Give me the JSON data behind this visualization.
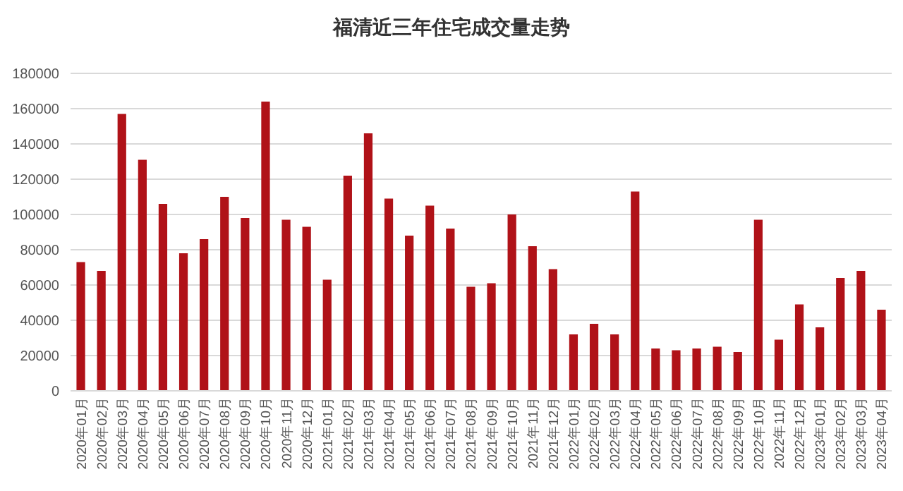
{
  "chart_data": {
    "type": "bar",
    "title": "福清近三年住宅成交量走势",
    "categories": [
      "2020年01月",
      "2020年02月",
      "2020年03月",
      "2020年04月",
      "2020年05月",
      "2020年06月",
      "2020年07月",
      "2020年08月",
      "2020年09月",
      "2020年10月",
      "2020年11月",
      "2020年12月",
      "2021年01月",
      "2021年02月",
      "2021年03月",
      "2021年04月",
      "2021年05月",
      "2021年06月",
      "2021年07月",
      "2021年08月",
      "2021年09月",
      "2021年10月",
      "2021年11月",
      "2021年12月",
      "2022年01月",
      "2022年02月",
      "2022年03月",
      "2022年04月",
      "2022年05月",
      "2022年06月",
      "2022年07月",
      "2022年08月",
      "2022年09月",
      "2022年10月",
      "2022年11月",
      "2022年12月",
      "2023年01月",
      "2023年02月",
      "2023年03月",
      "2023年04月"
    ],
    "values": [
      73000,
      68000,
      157000,
      131000,
      106000,
      78000,
      86000,
      110000,
      98000,
      164000,
      97000,
      93000,
      63000,
      122000,
      146000,
      109000,
      88000,
      105000,
      92000,
      59000,
      61000,
      100000,
      82000,
      69000,
      32000,
      38000,
      32000,
      113000,
      24000,
      23000,
      24000,
      25000,
      22000,
      97000,
      29000,
      49000,
      36000,
      64000,
      68000,
      46000
    ],
    "color": "#b01218",
    "ylim": [
      0,
      180000
    ],
    "yticks": [
      0,
      20000,
      40000,
      60000,
      80000,
      100000,
      120000,
      140000,
      160000,
      180000
    ],
    "grid": "y"
  }
}
